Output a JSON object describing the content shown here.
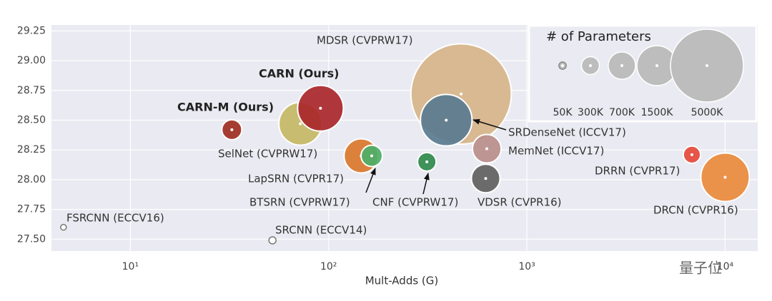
{
  "chart_data": {
    "type": "bubble",
    "x_label": "Mult-Adds (G)",
    "xscale": "log",
    "xlim": [
      4,
      14600
    ],
    "xticks": [
      {
        "value": 10,
        "label": "10¹"
      },
      {
        "value": 100,
        "label": "10²"
      },
      {
        "value": 1000,
        "label": "10³"
      },
      {
        "value": 10000,
        "label": "10⁴"
      }
    ],
    "ylim": [
      27.4,
      29.3
    ],
    "yticks": [
      {
        "value": 27.5,
        "label": "27.50"
      },
      {
        "value": 27.75,
        "label": "27.75"
      },
      {
        "value": 28,
        "label": "28.00"
      },
      {
        "value": 28.25,
        "label": "28.25"
      },
      {
        "value": 28.5,
        "label": "28.50"
      },
      {
        "value": 28.75,
        "label": "28.75"
      },
      {
        "value": 29,
        "label": "29.00"
      },
      {
        "value": 29.25,
        "label": "29.25"
      }
    ],
    "grid": true,
    "series": [
      {
        "name": "MDSR (CVPRW17)",
        "color": "#d6b48a",
        "x": [
          466
        ],
        "values": [
          28.72
        ],
        "sizes": [
          9500
        ]
      },
      {
        "name": "DRCN (CVPR16)",
        "color": "#e98a3c",
        "x": [
          10000
        ],
        "values": [
          28.02
        ],
        "sizes": [
          2220
        ]
      },
      {
        "name": "SelNet (CVPRW17)",
        "color": "#c4b765",
        "x": [
          72
        ],
        "values": [
          28.47
        ],
        "sizes": [
          1730
        ]
      },
      {
        "name": "CARN (Ours)",
        "color": "#a9262a",
        "x": [
          91
        ],
        "values": [
          28.6
        ],
        "sizes": [
          1970
        ]
      },
      {
        "name": "SRDenseNet (ICCV17)",
        "color": "#5a7b90",
        "x": [
          392
        ],
        "values": [
          28.5
        ],
        "sizes": [
          2500
        ]
      },
      {
        "name": "BTSRN (CVPRW17)",
        "color": "#d9772c",
        "x": [
          146
        ],
        "values": [
          28.2
        ],
        "sizes": [
          1100
        ]
      },
      {
        "name": "LapSRN (CVPR17)",
        "color": "#4daf68",
        "x": [
          165
        ],
        "values": [
          28.2
        ],
        "sizes": [
          430
        ]
      },
      {
        "name": "MemNet (ICCV17)",
        "color": "#b98d8a",
        "x": [
          628
        ],
        "values": [
          28.26
        ],
        "sizes": [
          770
        ]
      },
      {
        "name": "VDSR (CVPR16)",
        "color": "#5f5f5f",
        "x": [
          620
        ],
        "values": [
          28.01
        ],
        "sizes": [
          770
        ]
      },
      {
        "name": "CNF (CVPRW17)",
        "color": "#2f8a4d",
        "x": [
          313
        ],
        "values": [
          28.15
        ],
        "sizes": [
          325
        ]
      },
      {
        "name": "CARN-M (Ours)",
        "color": "#9e2c22",
        "x": [
          32.5
        ],
        "values": [
          28.42
        ],
        "sizes": [
          377
        ]
      },
      {
        "name": "DRRN (CVPR17)",
        "color": "#e4483a",
        "x": [
          6800
        ],
        "values": [
          28.21
        ],
        "sizes": [
          280
        ]
      },
      {
        "name": "SRCNN (ECCV14)",
        "color": "#ffffff",
        "x": [
          52.1
        ],
        "values": [
          27.49
        ],
        "sizes": [
          48
        ]
      },
      {
        "name": "FSRCNN (ECCV16)",
        "color": "#ffffff",
        "x": [
          4.6
        ],
        "values": [
          27.6
        ],
        "sizes": [
          31
        ]
      }
    ],
    "legend": {
      "title": "# of Parameters",
      "position": "upper right",
      "color": "#bdbdbd",
      "sizes": [
        {
          "value": 50,
          "label": "50K"
        },
        {
          "value": 300,
          "label": "300K"
        },
        {
          "value": 700,
          "label": "700K"
        },
        {
          "value": 1500,
          "label": "1500K"
        },
        {
          "value": 5000,
          "label": "5000K"
        }
      ]
    },
    "watermark": "量子位"
  }
}
